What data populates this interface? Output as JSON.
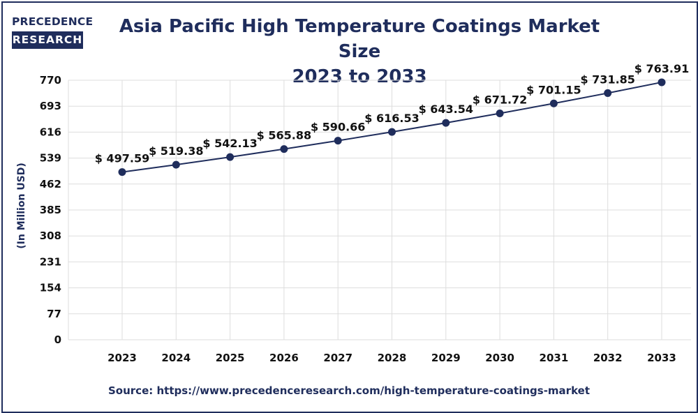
{
  "logo": {
    "line1": "PRECEDENCE",
    "line2": "RESEARCH"
  },
  "chart_data": {
    "type": "line",
    "title": "Asia Pacific High Temperature Coatings Market Size 2023 to 2033",
    "title_lines": [
      "Asia Pacific High Temperature Coatings Market Size",
      "2023 to 2033"
    ],
    "xlabel": "",
    "ylabel": "(In Million USD)",
    "categories": [
      "2023",
      "2024",
      "2025",
      "2026",
      "2027",
      "2028",
      "2029",
      "2030",
      "2031",
      "2032",
      "2033"
    ],
    "values": [
      497.59,
      519.38,
      542.13,
      565.88,
      590.66,
      616.53,
      643.54,
      671.72,
      701.15,
      731.85,
      763.91
    ],
    "data_labels": [
      "$ 497.59",
      "$ 519.38",
      "$ 542.13",
      "$ 565.88",
      "$ 590.66",
      "$ 616.53",
      "$ 643.54",
      "$ 671.72",
      "$ 701.15",
      "$ 731.85",
      "$ 763.91"
    ],
    "yticks": [
      0,
      77,
      154,
      231,
      308,
      385,
      462,
      539,
      616,
      693,
      770
    ],
    "ylim": [
      0,
      770
    ],
    "grid": true,
    "legend": "none",
    "line_color": "#1f2d5c"
  },
  "source": "Source: https://www.precedenceresearch.com/high-temperature-coatings-market",
  "colors": {
    "brand": "#1f2d5c",
    "grid": "#dddddd"
  }
}
